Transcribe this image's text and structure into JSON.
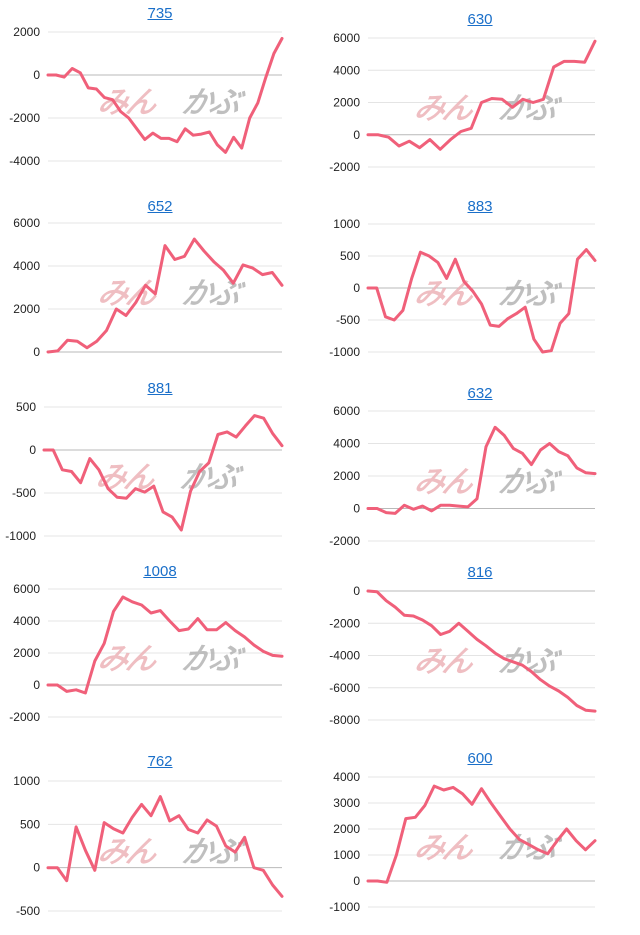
{
  "page": {
    "background": "#ffffff"
  },
  "chart_data": [
    {
      "type": "line",
      "title": "735",
      "ylim": [
        -4000,
        2000
      ],
      "yticks": [
        -4000,
        -2000,
        0,
        2000
      ],
      "series": [
        {
          "values": [
            0,
            0,
            -100,
            300,
            100,
            -600,
            -650,
            -1050,
            -1150,
            -1700,
            -2000,
            -2500,
            -3000,
            -2700,
            -2950,
            -2950,
            -3100,
            -2500,
            -2800,
            -2750,
            -2650,
            -3250,
            -3600,
            -2900,
            -3400,
            -2000,
            -1300,
            -100,
            1000,
            1700
          ],
          "color": "#f0607a"
        }
      ],
      "watermark": "みんかぶ"
    },
    {
      "type": "line",
      "title": "630",
      "ylim": [
        -2000,
        6000
      ],
      "yticks": [
        -2000,
        0,
        2000,
        4000,
        6000
      ],
      "series": [
        {
          "values": [
            0,
            0,
            -150,
            -700,
            -400,
            -800,
            -300,
            -900,
            -300,
            200,
            400,
            2000,
            2250,
            2200,
            1700,
            2200,
            2000,
            2200,
            4200,
            4550,
            4550,
            4500,
            5800
          ],
          "color": "#f0607a"
        }
      ],
      "watermark": "みんかぶ"
    },
    {
      "type": "line",
      "title": "652",
      "ylim": [
        0,
        6000
      ],
      "yticks": [
        0,
        2000,
        4000,
        6000
      ],
      "series": [
        {
          "values": [
            0,
            50,
            550,
            500,
            200,
            500,
            1000,
            2000,
            1700,
            2300,
            3100,
            2700,
            4950,
            4300,
            4450,
            5250,
            4700,
            4200,
            3800,
            3200,
            4050,
            3900,
            3600,
            3700,
            3100
          ],
          "color": "#f0607a"
        }
      ],
      "watermark": "みんかぶ"
    },
    {
      "type": "line",
      "title": "883",
      "ylim": [
        -1000,
        1000
      ],
      "yticks": [
        -1000,
        -500,
        0,
        500,
        1000
      ],
      "series": [
        {
          "values": [
            0,
            0,
            -450,
            -500,
            -350,
            150,
            560,
            500,
            400,
            150,
            450,
            100,
            -50,
            -250,
            -580,
            -600,
            -480,
            -400,
            -300,
            -800,
            -1000,
            -980,
            -550,
            -400,
            450,
            600,
            430
          ],
          "color": "#f0607a"
        }
      ],
      "watermark": "みんかぶ"
    },
    {
      "type": "line",
      "title": "881",
      "ylim": [
        -1000,
        500
      ],
      "yticks": [
        -1000,
        -500,
        0,
        500
      ],
      "series": [
        {
          "values": [
            0,
            0,
            -230,
            -250,
            -380,
            -100,
            -230,
            -450,
            -550,
            -560,
            -450,
            -490,
            -420,
            -720,
            -780,
            -930,
            -480,
            -250,
            -150,
            180,
            210,
            150,
            280,
            400,
            370,
            190,
            50
          ],
          "color": "#f0607a"
        }
      ],
      "watermark": "みんかぶ"
    },
    {
      "type": "line",
      "title": "632",
      "ylim": [
        -2000,
        6000
      ],
      "yticks": [
        -2000,
        0,
        2000,
        4000,
        6000
      ],
      "series": [
        {
          "values": [
            0,
            0,
            -250,
            -300,
            200,
            -50,
            150,
            -150,
            200,
            200,
            150,
            100,
            600,
            3800,
            5000,
            4500,
            3700,
            3400,
            2700,
            3600,
            4000,
            3500,
            3250,
            2500,
            2200,
            2150
          ],
          "color": "#f0607a"
        }
      ],
      "watermark": "みんかぶ"
    },
    {
      "type": "line",
      "title": "1008",
      "ylim": [
        -2000,
        6000
      ],
      "yticks": [
        -2000,
        0,
        2000,
        4000,
        6000
      ],
      "series": [
        {
          "values": [
            0,
            0,
            -400,
            -300,
            -500,
            1500,
            2600,
            4600,
            5500,
            5200,
            5000,
            4500,
            4650,
            4000,
            3400,
            3500,
            4150,
            3450,
            3450,
            3900,
            3400,
            3000,
            2500,
            2100,
            1850,
            1800
          ],
          "color": "#f0607a"
        }
      ],
      "watermark": "みんかぶ"
    },
    {
      "type": "line",
      "title": "816",
      "ylim": [
        -8000,
        0
      ],
      "yticks": [
        -8000,
        -6000,
        -4000,
        -2000,
        0
      ],
      "series": [
        {
          "values": [
            0,
            -50,
            -600,
            -1000,
            -1500,
            -1550,
            -1800,
            -2150,
            -2700,
            -2500,
            -2000,
            -2500,
            -3000,
            -3400,
            -3850,
            -4200,
            -4400,
            -4600,
            -5000,
            -5500,
            -5900,
            -6200,
            -6600,
            -7100,
            -7400,
            -7450
          ],
          "color": "#f0607a"
        }
      ],
      "watermark": "みんかぶ"
    },
    {
      "type": "line",
      "title": "762",
      "ylim": [
        -500,
        1000
      ],
      "yticks": [
        -500,
        0,
        500,
        1000
      ],
      "series": [
        {
          "values": [
            0,
            0,
            -150,
            470,
            200,
            -30,
            520,
            450,
            400,
            580,
            730,
            600,
            820,
            540,
            600,
            440,
            400,
            550,
            480,
            250,
            180,
            350,
            0,
            -30,
            -200,
            -330
          ],
          "color": "#f0607a"
        }
      ],
      "watermark": "みんかぶ"
    },
    {
      "type": "line",
      "title": "600",
      "ylim": [
        -1000,
        4000
      ],
      "yticks": [
        -1000,
        0,
        1000,
        2000,
        3000,
        4000
      ],
      "series": [
        {
          "values": [
            0,
            0,
            -50,
            1000,
            2400,
            2450,
            2900,
            3650,
            3500,
            3600,
            3350,
            2950,
            3550,
            3000,
            2500,
            2000,
            1600,
            1400,
            1200,
            1050,
            1550,
            2000,
            1550,
            1200,
            1550
          ],
          "color": "#f0607a"
        }
      ],
      "watermark": "みんかぶ"
    }
  ]
}
